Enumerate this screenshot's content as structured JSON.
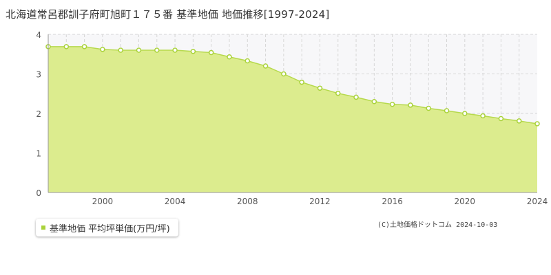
{
  "header": {
    "title": "北海道常呂郡訓子府町旭町１７５番 基準地価 地価推移[1997-2024]"
  },
  "legend": {
    "label": "基準地価 平均坪単価(万円/坪)"
  },
  "footer": {
    "copyright": "(C)土地価格ドットコム 2024-10-03"
  },
  "colors": {
    "area_fill": "#dcec8e",
    "line": "#b6d94c",
    "marker_fill": "#ffffff",
    "marker_stroke": "#a9d23a",
    "grid": "#d6d6d6",
    "projection_area": "#f7f7f9"
  },
  "chart_data": {
    "type": "area",
    "title": "北海道常呂郡訓子府町旭町１７５番 基準地価 地価推移[1997-2024]",
    "xlabel": "",
    "ylabel": "",
    "xlim": [
      1997,
      2024
    ],
    "ylim": [
      0,
      4
    ],
    "x_ticks": [
      2000,
      2004,
      2008,
      2012,
      2016,
      2020,
      2024
    ],
    "y_ticks": [
      0,
      1,
      2,
      3,
      4
    ],
    "grid": true,
    "legend_position": "bottom-left",
    "series": [
      {
        "name": "基準地価 平均坪単価(万円/坪)",
        "x": [
          1997,
          1998,
          1999,
          2000,
          2001,
          2002,
          2003,
          2004,
          2005,
          2006,
          2007,
          2008,
          2009,
          2010,
          2011,
          2012,
          2013,
          2014,
          2015,
          2016,
          2017,
          2018,
          2019,
          2020,
          2021,
          2022,
          2023,
          2024
        ],
        "values": [
          3.69,
          3.69,
          3.69,
          3.62,
          3.6,
          3.6,
          3.6,
          3.6,
          3.57,
          3.54,
          3.43,
          3.33,
          3.2,
          3.0,
          2.79,
          2.64,
          2.51,
          2.41,
          2.3,
          2.23,
          2.21,
          2.13,
          2.07,
          2.0,
          1.94,
          1.87,
          1.81,
          1.74
        ]
      }
    ]
  }
}
